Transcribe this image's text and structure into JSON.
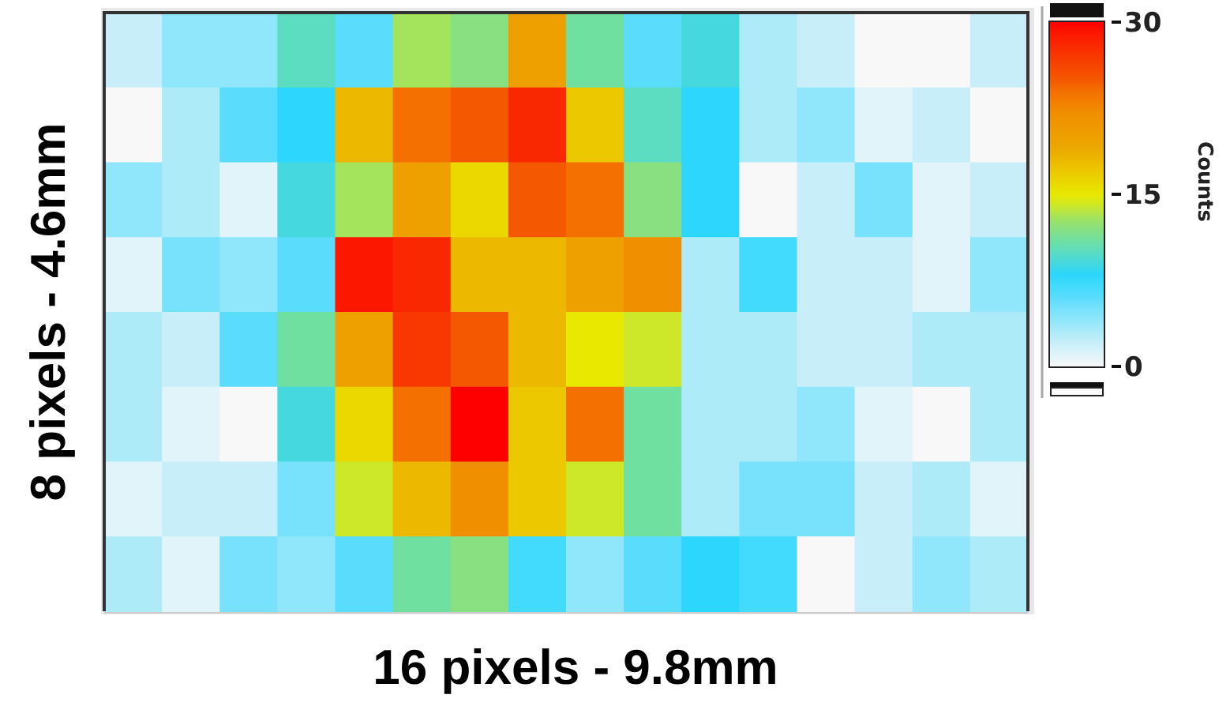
{
  "chart_data": {
    "type": "heatmap",
    "xlabel": "16 pixels - 9.8mm",
    "ylabel": "8 pixels - 4.6mm",
    "clabel": "Counts",
    "categories": [
      null,
      null,
      null,
      null,
      null,
      null,
      null,
      null,
      null,
      null,
      null,
      null,
      null,
      null,
      null,
      null
    ],
    "y_categories": [
      null,
      null,
      null,
      null,
      null,
      null,
      null,
      null
    ],
    "cells": [
      [
        2,
        4,
        4,
        10,
        6,
        13,
        12,
        20,
        11,
        6,
        9,
        3,
        2,
        0,
        0,
        2
      ],
      [
        0,
        3,
        6,
        8,
        18,
        24,
        25,
        28,
        17,
        10,
        8,
        3,
        4,
        1,
        2,
        0
      ],
      [
        4,
        3,
        1,
        9,
        13,
        20,
        16,
        25,
        24,
        12,
        8,
        0,
        2,
        5,
        1,
        2
      ],
      [
        1,
        5,
        4,
        6,
        29,
        28,
        18,
        18,
        20,
        22,
        3,
        7,
        2,
        2,
        1,
        4
      ],
      [
        3,
        2,
        6,
        11,
        20,
        27,
        25,
        18,
        15,
        14,
        3,
        3,
        2,
        2,
        3,
        3
      ],
      [
        3,
        1,
        0,
        9,
        16,
        24,
        30,
        17,
        24,
        11,
        3,
        3,
        4,
        1,
        0,
        3
      ],
      [
        1,
        2,
        2,
        5,
        14,
        18,
        22,
        17,
        14,
        11,
        3,
        5,
        5,
        2,
        3,
        1
      ],
      [
        3,
        1,
        5,
        4,
        6,
        11,
        12,
        7,
        4,
        6,
        8,
        7,
        0,
        2,
        4,
        3
      ]
    ],
    "clim": [
      0,
      30
    ],
    "cticks": [
      0,
      15,
      30
    ]
  }
}
